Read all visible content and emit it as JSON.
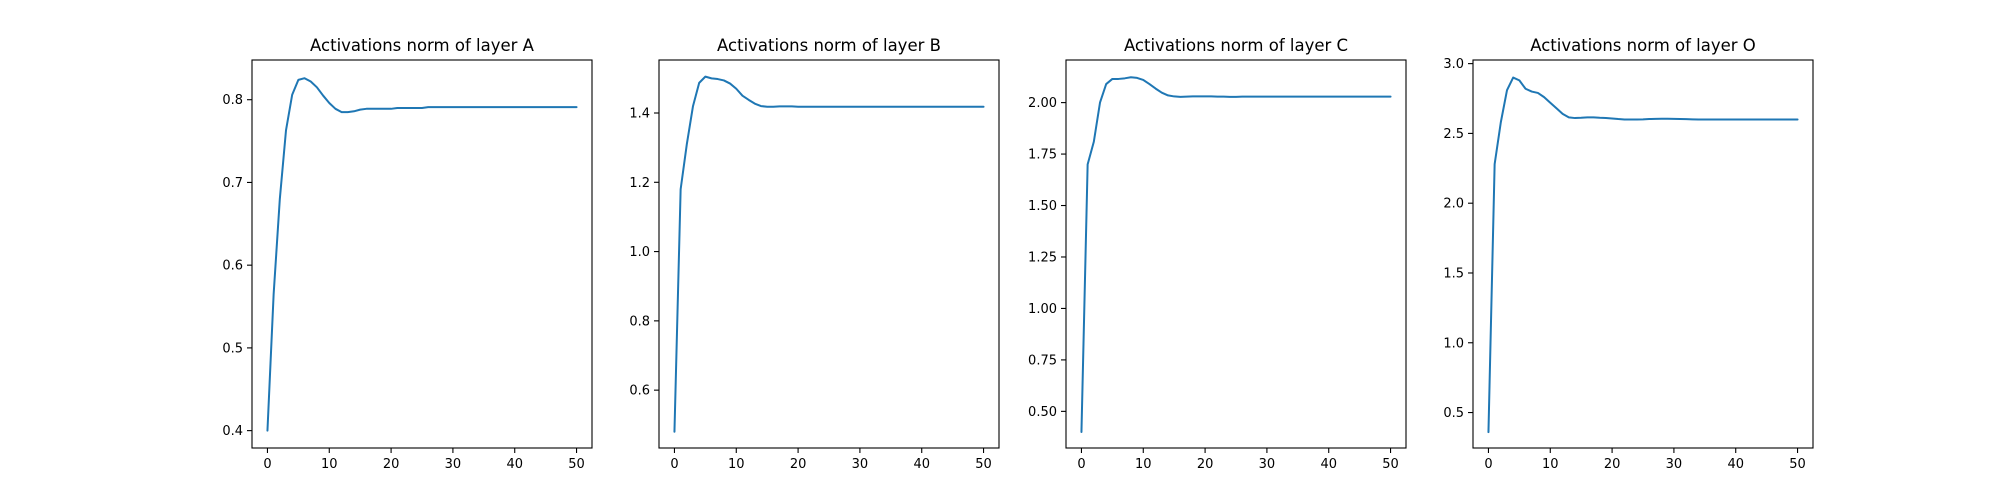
{
  "chart_data": [
    {
      "type": "line",
      "title": "Activations norm of layer A",
      "xlim": [
        -2.5,
        52.5
      ],
      "ylim": [
        0.379,
        0.848
      ],
      "xticks": [
        0,
        10,
        20,
        30,
        40,
        50
      ],
      "xtick_labels": [
        "0",
        "10",
        "20",
        "30",
        "40",
        "50"
      ],
      "yticks": [
        0.4,
        0.5,
        0.6,
        0.7,
        0.8
      ],
      "ytick_labels": [
        "0.4",
        "0.5",
        "0.6",
        "0.7",
        "0.8"
      ],
      "color": "#1f77b4",
      "x": [
        0,
        1,
        2,
        3,
        4,
        5,
        6,
        7,
        8,
        9,
        10,
        11,
        12,
        13,
        14,
        15,
        16,
        17,
        18,
        19,
        20,
        21,
        22,
        23,
        24,
        25,
        26,
        27,
        28,
        29,
        30,
        31,
        32,
        33,
        34,
        35,
        36,
        37,
        38,
        39,
        40,
        41,
        42,
        43,
        44,
        45,
        46,
        47,
        48,
        49,
        50
      ],
      "values": [
        0.4,
        0.565,
        0.68,
        0.763,
        0.806,
        0.824,
        0.826,
        0.822,
        0.815,
        0.805,
        0.796,
        0.789,
        0.785,
        0.785,
        0.786,
        0.788,
        0.789,
        0.789,
        0.789,
        0.789,
        0.789,
        0.79,
        0.79,
        0.79,
        0.79,
        0.79,
        0.791,
        0.791,
        0.791,
        0.791,
        0.791,
        0.791,
        0.791,
        0.791,
        0.791,
        0.791,
        0.791,
        0.791,
        0.791,
        0.791,
        0.791,
        0.791,
        0.791,
        0.791,
        0.791,
        0.791,
        0.791,
        0.791,
        0.791,
        0.791,
        0.791
      ]
    },
    {
      "type": "line",
      "title": "Activations norm of layer B",
      "xlim": [
        -2.5,
        52.5
      ],
      "ylim": [
        0.433,
        1.553
      ],
      "xticks": [
        0,
        10,
        20,
        30,
        40,
        50
      ],
      "xtick_labels": [
        "0",
        "10",
        "20",
        "30",
        "40",
        "50"
      ],
      "yticks": [
        0.6,
        0.8,
        1.0,
        1.2,
        1.4
      ],
      "ytick_labels": [
        "0.6",
        "0.8",
        "1.0",
        "1.2",
        "1.4"
      ],
      "color": "#1f77b4",
      "x": [
        0,
        1,
        2,
        3,
        4,
        5,
        6,
        7,
        8,
        9,
        10,
        11,
        12,
        13,
        14,
        15,
        16,
        17,
        18,
        19,
        20,
        21,
        22,
        23,
        24,
        25,
        26,
        27,
        28,
        29,
        30,
        31,
        32,
        33,
        34,
        35,
        36,
        37,
        38,
        39,
        40,
        41,
        42,
        43,
        44,
        45,
        46,
        47,
        48,
        49,
        50
      ],
      "values": [
        0.48,
        1.18,
        1.31,
        1.42,
        1.487,
        1.505,
        1.5,
        1.498,
        1.494,
        1.485,
        1.47,
        1.45,
        1.438,
        1.427,
        1.42,
        1.418,
        1.418,
        1.419,
        1.419,
        1.419,
        1.418,
        1.418,
        1.418,
        1.418,
        1.418,
        1.418,
        1.418,
        1.418,
        1.418,
        1.418,
        1.418,
        1.418,
        1.418,
        1.418,
        1.418,
        1.418,
        1.418,
        1.418,
        1.418,
        1.418,
        1.418,
        1.418,
        1.418,
        1.418,
        1.418,
        1.418,
        1.418,
        1.418,
        1.418,
        1.418,
        1.418
      ]
    },
    {
      "type": "line",
      "title": "Activations norm of layer C",
      "xlim": [
        -2.5,
        52.5
      ],
      "ylim": [
        0.322,
        2.207
      ],
      "xticks": [
        0,
        10,
        20,
        30,
        40,
        50
      ],
      "xtick_labels": [
        "0",
        "10",
        "20",
        "30",
        "40",
        "50"
      ],
      "yticks": [
        0.5,
        0.75,
        1.0,
        1.25,
        1.5,
        1.75,
        2.0
      ],
      "ytick_labels": [
        "0.50",
        "0.75",
        "1.00",
        "1.25",
        "1.50",
        "1.75",
        "2.00"
      ],
      "color": "#1f77b4",
      "x": [
        0,
        1,
        2,
        3,
        4,
        5,
        6,
        7,
        8,
        9,
        10,
        11,
        12,
        13,
        14,
        15,
        16,
        17,
        18,
        19,
        20,
        21,
        22,
        23,
        24,
        25,
        26,
        27,
        28,
        29,
        30,
        31,
        32,
        33,
        34,
        35,
        36,
        37,
        38,
        39,
        40,
        41,
        42,
        43,
        44,
        45,
        46,
        47,
        48,
        49,
        50
      ],
      "values": [
        0.4,
        1.7,
        1.81,
        2.0,
        2.09,
        2.115,
        2.115,
        2.118,
        2.123,
        2.12,
        2.11,
        2.09,
        2.068,
        2.048,
        2.035,
        2.03,
        2.028,
        2.029,
        2.03,
        2.03,
        2.03,
        2.03,
        2.029,
        2.029,
        2.028,
        2.028,
        2.029,
        2.029,
        2.029,
        2.029,
        2.029,
        2.029,
        2.029,
        2.029,
        2.029,
        2.029,
        2.029,
        2.029,
        2.029,
        2.029,
        2.029,
        2.029,
        2.029,
        2.029,
        2.029,
        2.029,
        2.029,
        2.029,
        2.029,
        2.029,
        2.029
      ]
    },
    {
      "type": "line",
      "title": "Activations norm of layer O",
      "xlim": [
        -2.5,
        52.5
      ],
      "ylim": [
        0.246,
        3.026
      ],
      "xticks": [
        0,
        10,
        20,
        30,
        40,
        50
      ],
      "xtick_labels": [
        "0",
        "10",
        "20",
        "30",
        "40",
        "50"
      ],
      "yticks": [
        0.5,
        1.0,
        1.5,
        2.0,
        2.5,
        3.0
      ],
      "ytick_labels": [
        "0.5",
        "1.0",
        "1.5",
        "2.0",
        "2.5",
        "3.0"
      ],
      "color": "#1f77b4",
      "x": [
        0,
        1,
        2,
        3,
        4,
        5,
        6,
        7,
        8,
        9,
        10,
        11,
        12,
        13,
        14,
        15,
        16,
        17,
        18,
        19,
        20,
        21,
        22,
        23,
        24,
        25,
        26,
        27,
        28,
        29,
        30,
        31,
        32,
        33,
        34,
        35,
        36,
        37,
        38,
        39,
        40,
        41,
        42,
        43,
        44,
        45,
        46,
        47,
        48,
        49,
        50
      ],
      "values": [
        0.36,
        2.28,
        2.58,
        2.81,
        2.9,
        2.88,
        2.82,
        2.8,
        2.79,
        2.76,
        2.72,
        2.68,
        2.64,
        2.615,
        2.61,
        2.612,
        2.615,
        2.615,
        2.612,
        2.61,
        2.607,
        2.603,
        2.6,
        2.6,
        2.6,
        2.601,
        2.603,
        2.604,
        2.605,
        2.605,
        2.604,
        2.603,
        2.602,
        2.601,
        2.6,
        2.6,
        2.6,
        2.6,
        2.6,
        2.6,
        2.6,
        2.6,
        2.6,
        2.6,
        2.6,
        2.6,
        2.6,
        2.6,
        2.6,
        2.6,
        2.6
      ]
    }
  ]
}
